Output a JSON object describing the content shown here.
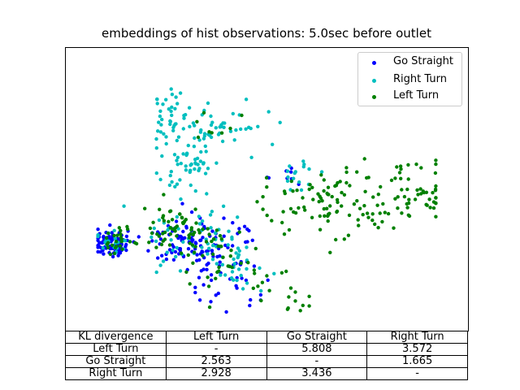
{
  "chart_data": {
    "type": "scatter",
    "title": "embeddings of hist observations: 5.0sec before outlet",
    "xlabel": "",
    "ylabel": "",
    "xlim": [
      0,
      100
    ],
    "ylim": [
      0,
      100
    ],
    "axes_ticks": false,
    "grid": false,
    "legend_position": "top-right",
    "series": [
      {
        "name": "Go Straight",
        "color": "#0000ff",
        "clusters": [
          {
            "cx": 11,
            "cy": 31,
            "sx": 2.2,
            "sy": 2.5,
            "n": 90
          },
          {
            "cx": 29,
            "cy": 32,
            "sx": 5,
            "sy": 5,
            "n": 70
          },
          {
            "cx": 38,
            "cy": 29,
            "sx": 5,
            "sy": 6,
            "n": 55
          },
          {
            "cx": 43,
            "cy": 13,
            "sx": 5,
            "sy": 4,
            "n": 18
          },
          {
            "cx": 55,
            "cy": 54,
            "sx": 2,
            "sy": 2,
            "n": 8
          }
        ]
      },
      {
        "name": "Right Turn",
        "color": "#00bfbf",
        "clusters": [
          {
            "cx": 27,
            "cy": 76,
            "sx": 3,
            "sy": 5,
            "n": 40
          },
          {
            "cx": 38,
            "cy": 72,
            "sx": 6,
            "sy": 5,
            "n": 45
          },
          {
            "cx": 30,
            "cy": 58,
            "sx": 4,
            "sy": 4,
            "n": 45
          },
          {
            "cx": 35,
            "cy": 33,
            "sx": 8,
            "sy": 7,
            "n": 60
          },
          {
            "cx": 43,
            "cy": 20,
            "sx": 5,
            "sy": 5,
            "n": 20
          },
          {
            "cx": 57,
            "cy": 57,
            "sx": 4,
            "sy": 4,
            "n": 18
          },
          {
            "cx": 12,
            "cy": 32,
            "sx": 2.2,
            "sy": 2.5,
            "n": 20
          }
        ]
      },
      {
        "name": "Left Turn",
        "color": "#008000",
        "clusters": [
          {
            "cx": 27,
            "cy": 36,
            "sx": 4,
            "sy": 4,
            "n": 55
          },
          {
            "cx": 37,
            "cy": 28,
            "sx": 6,
            "sy": 6,
            "n": 40
          },
          {
            "cx": 13,
            "cy": 32,
            "sx": 2.5,
            "sy": 2.5,
            "n": 25
          },
          {
            "cx": 52,
            "cy": 15,
            "sx": 4,
            "sy": 4,
            "n": 20
          },
          {
            "cx": 60,
            "cy": 45,
            "sx": 7,
            "sy": 5,
            "n": 50
          },
          {
            "cx": 75,
            "cy": 45,
            "sx": 6,
            "sy": 7,
            "n": 55
          },
          {
            "cx": 88,
            "cy": 50,
            "sx": 5,
            "sy": 5,
            "n": 45
          },
          {
            "cx": 37,
            "cy": 72,
            "sx": 3,
            "sy": 4,
            "n": 8
          }
        ]
      }
    ],
    "table": {
      "header": [
        "KL divergence",
        "Left Turn",
        "Go Straight",
        "Right Turn"
      ],
      "rows": [
        [
          "Left Turn",
          "-",
          "5.808",
          "3.572"
        ],
        [
          "Go Straight",
          "2.563",
          "-",
          "1.665"
        ],
        [
          "Right Turn",
          "2.928",
          "3.436",
          "-"
        ]
      ]
    }
  }
}
